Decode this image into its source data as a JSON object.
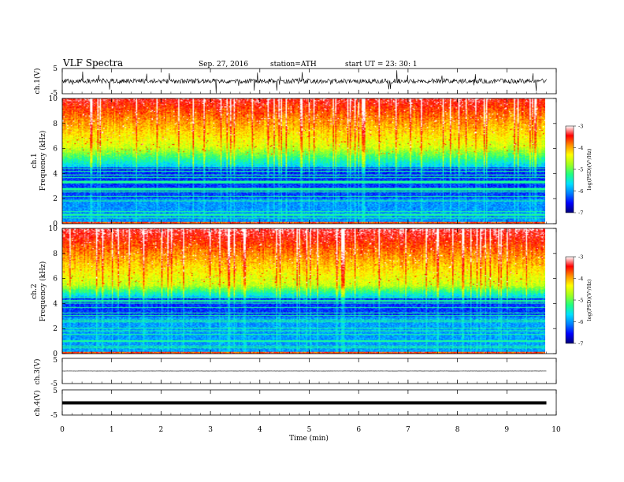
{
  "header": {
    "title": "VLF  Spectra",
    "date": "Sep. 27, 2016",
    "station": "station=ATH",
    "start": "start  UT  =   23: 30: 1"
  },
  "chart_data": [
    {
      "type": "line",
      "id": "ch1-waveform",
      "ylabel": "ch.1(V)",
      "ylim": [
        -5,
        5
      ],
      "yticks": [
        "5",
        "-5"
      ],
      "x_range_min": [
        0,
        9.8
      ],
      "description_values": {
        "baseline": 0,
        "noise_amplitude": 1.0
      }
    },
    {
      "type": "heatmap",
      "id": "ch1-spectrogram",
      "ylabel_top": "ch.1",
      "ylabel": "Frequency  (kHz)",
      "ylim": [
        0,
        10
      ],
      "yticks": [
        "0",
        "2",
        "4",
        "6",
        "8",
        "10"
      ],
      "colorbar": {
        "label": "log(PSD)(V²/Hz)",
        "range": [
          -7,
          -3
        ],
        "ticks": [
          "-3",
          "-4",
          "-5",
          "-6",
          "-7"
        ]
      }
    },
    {
      "type": "heatmap",
      "id": "ch2-spectrogram",
      "ylabel_top": "ch.2",
      "ylabel": "Frequency  (kHz)",
      "ylim": [
        0,
        10
      ],
      "yticks": [
        "0",
        "2",
        "4",
        "6",
        "8",
        "10"
      ],
      "colorbar": {
        "label": "log(PSD)(V²/Hz)",
        "range": [
          -7,
          -3
        ],
        "ticks": [
          "-3",
          "-4",
          "-5",
          "-6",
          "-7"
        ]
      }
    },
    {
      "type": "line",
      "id": "ch3-waveform",
      "ylabel": "ch.3(V)",
      "ylim": [
        -5,
        5
      ],
      "yticks": [
        "5",
        "-5"
      ],
      "x_range_min": [
        0,
        9.8
      ],
      "description_values": {
        "baseline": 0
      }
    },
    {
      "type": "line",
      "id": "ch4-waveform",
      "ylabel": "ch.4(V)",
      "ylim": [
        -5,
        5
      ],
      "yticks": [
        "5",
        "-5"
      ],
      "x_range_min": [
        0,
        9.8
      ],
      "description_values": {
        "baseline": 0
      }
    }
  ],
  "xaxis": {
    "label": "Time  (min)",
    "range": [
      0,
      10
    ],
    "ticks": [
      "0",
      "1",
      "2",
      "3",
      "4",
      "5",
      "6",
      "7",
      "8",
      "9",
      "10"
    ]
  },
  "colors": {
    "colormap": [
      "#00007a",
      "#0000ff",
      "#0080ff",
      "#00e0ff",
      "#20ff80",
      "#a0ff20",
      "#ffff00",
      "#ff9000",
      "#ff0000",
      "#ffffff"
    ]
  }
}
